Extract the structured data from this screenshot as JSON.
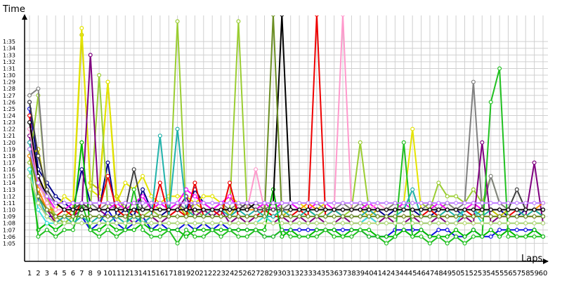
{
  "chart_data": {
    "type": "line",
    "title": "",
    "xlabel": "Laps",
    "ylabel": "Time",
    "grid": true,
    "legend": "none",
    "x_min": 1,
    "x_max": 60,
    "y_unit": "seconds",
    "y_min_seconds": 64,
    "y_max_seconds": 97,
    "x_tick_labels": [
      "1",
      "2",
      "3",
      "4",
      "5",
      "6",
      "7",
      "8",
      "9",
      "10",
      "11",
      "12",
      "13",
      "14",
      "15",
      "16",
      "17",
      "18",
      "19",
      "20",
      "21",
      "22",
      "23",
      "24",
      "25",
      "26",
      "27",
      "28",
      "29",
      "30",
      "31",
      "32",
      "33",
      "34",
      "35",
      "36",
      "37",
      "38",
      "39",
      "40",
      "41",
      "42",
      "43",
      "44",
      "45",
      "46",
      "47",
      "48",
      "49",
      "50",
      "51",
      "52",
      "53",
      "54",
      "55",
      "56",
      "57",
      "58",
      "59",
      "60"
    ],
    "y_tick_labels": [
      "1:05",
      "1:06",
      "1:07",
      "1:08",
      "1:09",
      "1:10",
      "1:11",
      "1:12",
      "1:13",
      "1:14",
      "1:15",
      "1:16",
      "1:17",
      "1:18",
      "1:19",
      "1:20",
      "1:21",
      "1:22",
      "1:23",
      "1:24",
      "1:25",
      "1:26",
      "1:27",
      "1:28",
      "1:29",
      "1:30",
      "1:31",
      "1:32",
      "1:33",
      "1:34",
      "1:35"
    ],
    "series": [
      {
        "color": "#1010e0",
        "values": [
          85,
          71,
          69,
          69,
          68,
          68,
          69,
          67,
          68,
          70,
          68,
          67,
          68,
          69,
          67,
          68,
          67,
          67,
          68,
          67,
          68,
          67,
          68,
          67,
          67,
          67,
          67,
          66,
          66,
          67,
          67,
          67,
          67,
          67,
          67,
          67,
          67,
          67,
          67,
          66,
          66,
          66,
          67,
          67,
          67,
          67,
          66,
          67,
          67,
          66,
          66,
          67,
          66,
          66,
          67,
          67,
          67,
          67,
          67,
          66
        ]
      },
      {
        "color": "#00008b",
        "values": [
          86,
          76,
          74,
          72,
          71,
          70,
          76,
          71,
          70,
          77,
          69,
          70,
          69,
          73,
          70,
          69,
          70,
          71,
          70,
          73,
          71,
          70,
          71,
          69,
          70,
          71,
          71,
          70,
          70,
          71,
          71,
          70,
          70,
          70,
          70,
          70,
          70,
          70,
          70,
          70,
          70,
          69,
          70,
          70,
          70,
          69,
          69,
          70,
          70,
          70,
          69,
          69,
          70,
          70,
          70,
          69,
          69,
          70,
          70,
          69
        ]
      },
      {
        "color": "#c0c000",
        "values": [
          78,
          79,
          72,
          68,
          69,
          70,
          96,
          74,
          73,
          89,
          72,
          70,
          71,
          70,
          71,
          70,
          70,
          71,
          69,
          71,
          70,
          70,
          71,
          69,
          71,
          70,
          71,
          70,
          69,
          69,
          70,
          70,
          70,
          69,
          69,
          70,
          70,
          70,
          70,
          69,
          70,
          70,
          70,
          70,
          70,
          70,
          70,
          69,
          70,
          70,
          70,
          69,
          70,
          70,
          69,
          70,
          70,
          69,
          70,
          69
        ]
      },
      {
        "color": "#e4e400",
        "values": [
          80,
          75,
          71,
          70,
          72,
          71,
          97,
          73,
          72,
          89,
          71,
          74,
          73,
          75,
          72,
          71,
          72,
          72,
          72,
          71,
          72,
          72,
          71,
          72,
          71,
          71,
          71,
          70,
          71,
          71,
          71,
          71,
          70,
          70,
          71,
          71,
          71,
          70,
          71,
          70,
          70,
          70,
          71,
          71,
          82,
          70,
          70,
          70,
          71,
          70,
          70,
          71,
          70,
          70,
          70,
          70,
          70,
          70,
          70,
          70
        ]
      },
      {
        "color": "#9acd32",
        "values": [
          77,
          87,
          72,
          69,
          68,
          69,
          71,
          70,
          90,
          70,
          70,
          69,
          69,
          69,
          70,
          69,
          69,
          98,
          69,
          70,
          69,
          69,
          70,
          70,
          98,
          70,
          70,
          70,
          69,
          70,
          70,
          70,
          70,
          69,
          70,
          70,
          69,
          70,
          80,
          70,
          70,
          70,
          70,
          71,
          71,
          71,
          70,
          74,
          72,
          72,
          71,
          73,
          71,
          75,
          71,
          70,
          70,
          70,
          70,
          70
        ]
      },
      {
        "color": "#808080",
        "values": [
          87,
          88,
          72,
          71,
          70,
          71,
          70,
          71,
          70,
          71,
          70,
          71,
          71,
          70,
          71,
          71,
          70,
          71,
          70,
          71,
          71,
          70,
          71,
          70,
          71,
          70,
          71,
          70,
          71,
          70,
          71,
          70,
          70,
          71,
          70,
          70,
          71,
          70,
          71,
          70,
          70,
          70,
          71,
          70,
          70,
          70,
          71,
          70,
          71,
          70,
          71,
          89,
          70,
          75,
          71,
          70,
          70,
          70,
          70,
          70
        ]
      },
      {
        "color": "#ff00ff",
        "values": [
          80,
          75,
          72,
          70,
          70,
          71,
          71,
          70,
          70,
          70,
          71,
          70,
          71,
          72,
          70,
          71,
          70,
          71,
          73,
          72,
          71,
          70,
          71,
          72,
          70,
          71,
          70,
          71,
          70,
          71,
          71,
          70,
          70,
          71,
          71,
          70,
          70,
          70,
          70,
          71,
          70,
          70,
          70,
          71,
          70,
          70,
          70,
          71,
          70,
          70,
          70,
          71,
          70,
          70,
          70,
          70,
          70,
          70,
          70,
          70
        ]
      },
      {
        "color": "#800080",
        "values": [
          81,
          73,
          70,
          68,
          69,
          69,
          70,
          93,
          70,
          69,
          69,
          69,
          68,
          68,
          69,
          68,
          69,
          70,
          72,
          69,
          70,
          69,
          70,
          68,
          69,
          68,
          69,
          69,
          68,
          69,
          68,
          69,
          68,
          69,
          68,
          68,
          69,
          68,
          68,
          69,
          68,
          69,
          68,
          68,
          69,
          68,
          68,
          69,
          68,
          68,
          69,
          68,
          80,
          68,
          69,
          69,
          69,
          69,
          77,
          68
        ]
      },
      {
        "color": "#ee0000",
        "values": [
          84,
          72,
          70,
          69,
          70,
          69,
          71,
          70,
          70,
          75,
          70,
          69,
          70,
          69,
          69,
          74,
          69,
          70,
          69,
          74,
          69,
          70,
          69,
          74,
          69,
          69,
          69,
          70,
          69,
          69,
          69,
          70,
          69,
          99,
          69,
          70,
          69,
          69,
          69,
          70,
          69,
          69,
          69,
          69,
          69,
          69,
          70,
          69,
          69,
          69,
          70,
          69,
          69,
          69,
          69,
          69,
          70,
          69,
          69,
          69
        ]
      },
      {
        "color": "#00bb00",
        "values": [
          76,
          67,
          68,
          67,
          68,
          68,
          80,
          67,
          67,
          68,
          67,
          67,
          67,
          68,
          67,
          67,
          67,
          67,
          66,
          67,
          67,
          67,
          67,
          67,
          67,
          67,
          67,
          67,
          73,
          66,
          67,
          66,
          66,
          67,
          67,
          67,
          66,
          67,
          67,
          67,
          66,
          66,
          66,
          67,
          66,
          67,
          66,
          66,
          66,
          67,
          66,
          67,
          66,
          67,
          66,
          67,
          66,
          66,
          67,
          66
        ]
      },
      {
        "color": "#20c020",
        "values": [
          79,
          66,
          67,
          66,
          67,
          67,
          71,
          67,
          66,
          67,
          66,
          67,
          73,
          67,
          66,
          66,
          67,
          65,
          67,
          66,
          66,
          67,
          66,
          67,
          66,
          66,
          67,
          66,
          66,
          67,
          66,
          66,
          66,
          66,
          67,
          66,
          66,
          66,
          67,
          66,
          66,
          65,
          66,
          80,
          66,
          66,
          65,
          66,
          65,
          66,
          65,
          66,
          66,
          86,
          91,
          66,
          66,
          66,
          66,
          66
        ]
      },
      {
        "color": "#20b2aa",
        "values": [
          80,
          72,
          69,
          68,
          69,
          68,
          69,
          68,
          69,
          68,
          69,
          68,
          69,
          68,
          69,
          81,
          69,
          82,
          70,
          69,
          69,
          70,
          70,
          69,
          70,
          69,
          70,
          69,
          69,
          70,
          69,
          69,
          70,
          69,
          69,
          70,
          69,
          69,
          69,
          70,
          69,
          69,
          69,
          70,
          73,
          69,
          69,
          69,
          70,
          69,
          70,
          70,
          69,
          70,
          70,
          70,
          70,
          69,
          70,
          69
        ]
      },
      {
        "color": "#40e0e0",
        "values": [
          76,
          70,
          68,
          68,
          68,
          68,
          68,
          68,
          68,
          68,
          68,
          68,
          68,
          68,
          68,
          68,
          68,
          68,
          68,
          68,
          68,
          68,
          68,
          68,
          68,
          68,
          68,
          69,
          68,
          68,
          68,
          68,
          68,
          68,
          68,
          68,
          68,
          68,
          68,
          69,
          68,
          68,
          68,
          68,
          68,
          68,
          68,
          68,
          68,
          68,
          70,
          70,
          68,
          68,
          68,
          68,
          68,
          68,
          68,
          68
        ]
      },
      {
        "color": "#ff8c00",
        "values": [
          78,
          73,
          70,
          70,
          70,
          70,
          71,
          70,
          70,
          70,
          70,
          70,
          70,
          70,
          70,
          70,
          70,
          70,
          70,
          70,
          70,
          70,
          70,
          70,
          70,
          70,
          70,
          70,
          70,
          70,
          70,
          70,
          71,
          70,
          70,
          70,
          70,
          70,
          70,
          70,
          70,
          70,
          70,
          70,
          70,
          70,
          70,
          70,
          70,
          70,
          70,
          70,
          70,
          70,
          70,
          70,
          70,
          70,
          70,
          71
        ]
      },
      {
        "color": "#ff99cc",
        "values": [
          82,
          74,
          71,
          70,
          70,
          70,
          71,
          70,
          70,
          70,
          70,
          70,
          70,
          70,
          70,
          70,
          70,
          70,
          70,
          70,
          70,
          70,
          70,
          70,
          70,
          70,
          76,
          70,
          70,
          70,
          70,
          70,
          70,
          70,
          70,
          70,
          99,
          70,
          70,
          70,
          71,
          70,
          70,
          70,
          70,
          70,
          70,
          70,
          70,
          70,
          70,
          70,
          70,
          70,
          70,
          70,
          70,
          70,
          70,
          70
        ]
      },
      {
        "color": "#404040",
        "values": [
          86,
          78,
          73,
          71,
          70,
          70,
          71,
          70,
          70,
          70,
          70,
          70,
          76,
          70,
          70,
          70,
          70,
          70,
          70,
          70,
          70,
          70,
          70,
          70,
          70,
          71,
          70,
          70,
          70,
          70,
          70,
          70,
          70,
          70,
          70,
          70,
          70,
          70,
          70,
          70,
          70,
          70,
          70,
          70,
          70,
          70,
          70,
          70,
          70,
          70,
          70,
          70,
          70,
          70,
          70,
          70,
          73,
          70,
          70,
          70
        ]
      },
      {
        "color": "#000000",
        "values": [
          83,
          75,
          72,
          71,
          70,
          70,
          70,
          70,
          70,
          70,
          70,
          70,
          70,
          70,
          70,
          70,
          70,
          70,
          70,
          70,
          70,
          70,
          70,
          70,
          70,
          70,
          71,
          71,
          71,
          99,
          70,
          70,
          70,
          70,
          70,
          70,
          70,
          70,
          70,
          70,
          70,
          70,
          70,
          70,
          70,
          70,
          70,
          70,
          70,
          70,
          70,
          70,
          70,
          70,
          70,
          70,
          70,
          70,
          70,
          70
        ]
      },
      {
        "color": "#6b8e23",
        "values": [
          79,
          72,
          70,
          69,
          69,
          69,
          69,
          69,
          69,
          69,
          69,
          69,
          69,
          69,
          69,
          69,
          69,
          69,
          69,
          69,
          69,
          69,
          69,
          69,
          69,
          69,
          69,
          69,
          99,
          69,
          69,
          69,
          69,
          69,
          69,
          69,
          69,
          69,
          69,
          69,
          69,
          69,
          69,
          69,
          69,
          69,
          69,
          69,
          69,
          69,
          69,
          69,
          69,
          69,
          69,
          69,
          69,
          69,
          69,
          69
        ]
      },
      {
        "color": "#b8d878",
        "values": [
          75,
          71,
          69,
          68,
          68,
          68,
          68,
          68,
          68,
          68,
          68,
          68,
          68,
          68,
          68,
          68,
          68,
          68,
          68,
          68,
          68,
          68,
          68,
          68,
          68,
          68,
          68,
          68,
          68,
          68,
          68,
          68,
          68,
          68,
          68,
          68,
          68,
          68,
          68,
          68,
          68,
          68,
          68,
          68,
          68,
          68,
          68,
          68,
          68,
          68,
          68,
          68,
          68,
          68,
          68,
          68,
          68,
          68,
          68,
          68
        ]
      },
      {
        "color": "#c080ff",
        "values": [
          79,
          74,
          72,
          71,
          71,
          71,
          71,
          71,
          71,
          71,
          71,
          71,
          71,
          71,
          71,
          71,
          71,
          71,
          71,
          71,
          71,
          71,
          71,
          71,
          71,
          71,
          71,
          71,
          71,
          71,
          71,
          71,
          71,
          71,
          71,
          71,
          71,
          71,
          71,
          71,
          71,
          71,
          71,
          71,
          71,
          71,
          71,
          71,
          71,
          71,
          71,
          71,
          71,
          71,
          71,
          71,
          71,
          71,
          71,
          71
        ]
      }
    ]
  }
}
